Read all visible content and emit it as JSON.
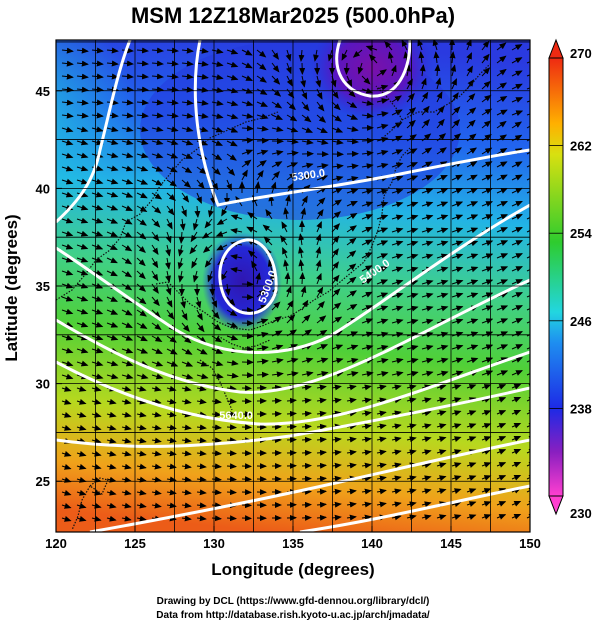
{
  "chart_data": {
    "type": "heatmap",
    "title": "MSM 12Z18Mar2025 (500.0hPa)",
    "xlabel": "Longitude (degrees)",
    "ylabel": "Latitude  (degrees)",
    "xlim": [
      120,
      150
    ],
    "ylim": [
      22.4,
      47.6
    ],
    "xticks": [
      120,
      125,
      130,
      135,
      140,
      145,
      150
    ],
    "yticks": [
      25,
      30,
      35,
      40,
      45
    ],
    "colorbar": {
      "ticks": [
        230,
        238,
        246,
        254,
        262,
        270
      ],
      "range": [
        230,
        270
      ],
      "labels": [
        "230",
        "238",
        "246",
        "254",
        "262",
        "270"
      ]
    },
    "colors": {
      "min": "#ff3fd0",
      "purple": "#8a1fc0",
      "blue": "#1d2ae6",
      "cyan": "#22d6e0",
      "green": "#2ecc2e",
      "yellow": "#ffe600",
      "max": "#ee2a12"
    },
    "contours": {
      "field": "geopotential height (m)",
      "labels": [
        {
          "text": "5300.0",
          "lon": 136.0,
          "lat": 40.5
        },
        {
          "text": "5300.0",
          "lon": 133.6,
          "lat": 34.9
        },
        {
          "text": "5400.0",
          "lon": 140.3,
          "lat": 35.6
        },
        {
          "text": "5640.0",
          "lon": 131.4,
          "lat": 28.2
        }
      ]
    },
    "wind_field": "wind vectors (streamline arrows)",
    "credits": [
      "Drawing by DCL (https://www.gfd-dennou.org/library/dcl/)",
      "Data from http://database.rish.kyoto-u.ac.jp/arch/jmadata/"
    ]
  }
}
